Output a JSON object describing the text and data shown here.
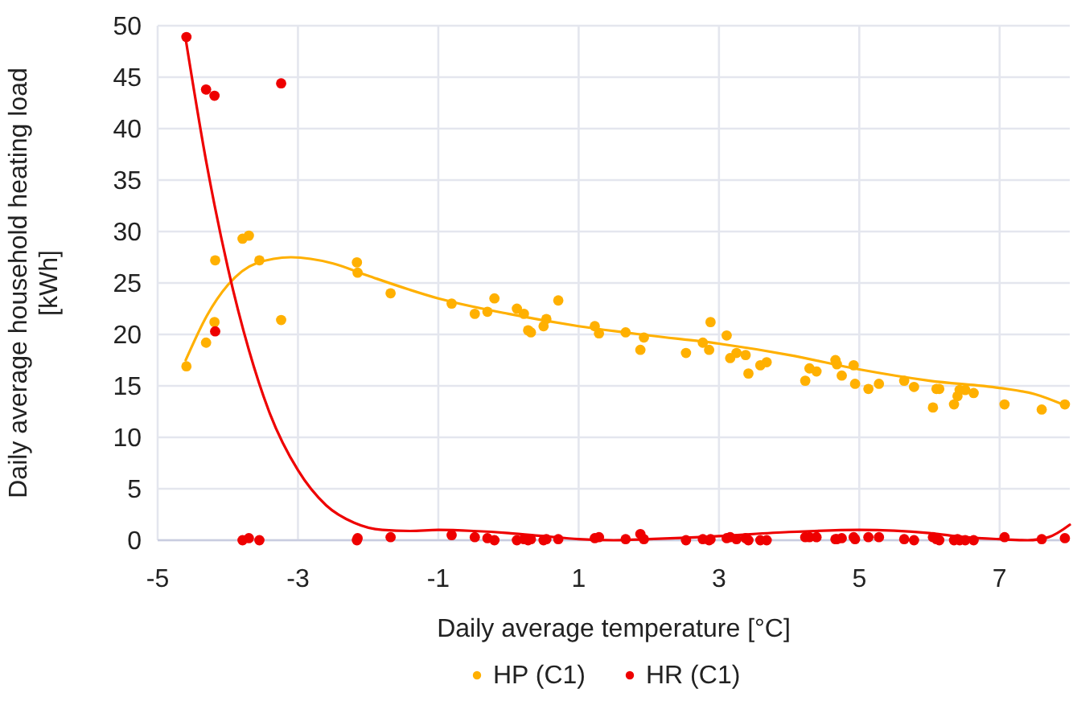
{
  "chart_data": {
    "type": "scatter",
    "xlabel": "Daily average temperature [°C]",
    "ylabel": "Daily average household heating load [kWh]",
    "x": [
      -4.59,
      -4.31,
      -4.19,
      -4.18,
      -3.79,
      -3.7,
      -3.55,
      -3.24,
      -2.16,
      -2.15,
      -1.68,
      -0.81,
      -0.48,
      -0.3,
      -0.2,
      0.12,
      0.22,
      0.28,
      0.32,
      0.5,
      0.54,
      0.71,
      1.23,
      1.29,
      1.67,
      1.88,
      1.93,
      2.53,
      2.77,
      2.86,
      2.88,
      3.11,
      3.16,
      3.25,
      3.38,
      3.42,
      3.59,
      3.68,
      4.23,
      4.29,
      4.39,
      4.66,
      4.68,
      4.75,
      4.92,
      4.94,
      5.13,
      5.28,
      5.64,
      5.78,
      6.05,
      6.1,
      6.14,
      6.35,
      6.4,
      6.43,
      6.51,
      6.63,
      7.07,
      7.6,
      7.93
    ],
    "series": [
      {
        "name": "HP (C1)",
        "color": "#ffb000",
        "values": [
          16.9,
          19.2,
          21.2,
          27.2,
          29.3,
          29.6,
          27.2,
          21.4,
          27.0,
          26.0,
          24.0,
          23.0,
          22.0,
          22.2,
          23.5,
          22.5,
          22.0,
          20.4,
          20.2,
          20.8,
          21.5,
          23.3,
          20.8,
          20.1,
          20.2,
          18.5,
          19.7,
          18.2,
          19.2,
          18.5,
          21.2,
          19.9,
          17.7,
          18.2,
          18.0,
          16.2,
          17.0,
          17.3,
          15.5,
          16.7,
          16.4,
          17.5,
          17.1,
          16.0,
          17.0,
          15.2,
          14.7,
          15.2,
          15.5,
          14.9,
          12.9,
          14.7,
          14.7,
          13.2,
          14.0,
          14.6,
          14.6,
          14.3,
          13.2,
          12.7,
          13.2
        ]
      },
      {
        "name": "HR (C1)",
        "color": "#ee0000",
        "values": [
          48.9,
          43.8,
          43.2,
          20.3,
          0,
          0.2,
          0,
          44.4,
          0,
          0.2,
          0.3,
          0.5,
          0.3,
          0.2,
          0,
          0,
          0.1,
          0,
          0.1,
          0,
          0.1,
          0.1,
          0.2,
          0.3,
          0.1,
          0.6,
          0.1,
          0,
          0.1,
          0,
          0.1,
          0.2,
          0.3,
          0.1,
          0.2,
          0,
          0,
          0,
          0.3,
          0.3,
          0.3,
          0.1,
          0.1,
          0.2,
          0.3,
          0.1,
          0.3,
          0.3,
          0.1,
          0,
          0.3,
          0.1,
          0,
          0,
          0.1,
          0,
          0,
          0,
          0.3,
          0.1,
          0.2
        ]
      },
      {
        "type": "line",
        "marker": "none",
        "color": "#ffb000",
        "x": [
          -4.6,
          -4.3,
          -4,
          -3.6,
          -3.1,
          -2.5,
          -2,
          -1,
          0,
          1,
          2,
          3,
          4,
          5,
          6,
          7,
          7.5,
          7.9
        ],
        "values": [
          17.5,
          21.8,
          24.8,
          26.9,
          27.5,
          26.9,
          25.7,
          23.5,
          22.0,
          20.8,
          19.9,
          19.1,
          18.0,
          16.6,
          15.5,
          14.8,
          14.2,
          13.2
        ]
      },
      {
        "type": "line",
        "marker": "none",
        "color": "#ee0000",
        "x": [
          -4.6,
          -4.3,
          -4,
          -3.7,
          -3.4,
          -3,
          -2.6,
          -2.2,
          -1.8,
          -1.4,
          -1,
          -0.5,
          0,
          0.5,
          1,
          1.5,
          2,
          3,
          4,
          5,
          6,
          6.5,
          7,
          7.4,
          7.7,
          8
        ],
        "values": [
          48.7,
          36.5,
          26.5,
          18.5,
          12.3,
          6.8,
          3.4,
          1.7,
          1.0,
          0.9,
          1.0,
          0.9,
          0.7,
          0.4,
          0.1,
          0,
          0.1,
          0.4,
          0.8,
          1.0,
          0.7,
          0.3,
          0.1,
          0,
          0.3,
          1.5
        ]
      }
    ],
    "xlim": [
      -5,
      8
    ],
    "xticks": [
      -5,
      -3,
      -1,
      1,
      3,
      5,
      7
    ],
    "ylim": [
      0,
      50
    ],
    "yticks": [
      0,
      5,
      10,
      15,
      20,
      25,
      30,
      35,
      40,
      45,
      50
    ],
    "grid": true,
    "legend": "bottom",
    "marker": "circle",
    "line_style": "solid"
  }
}
